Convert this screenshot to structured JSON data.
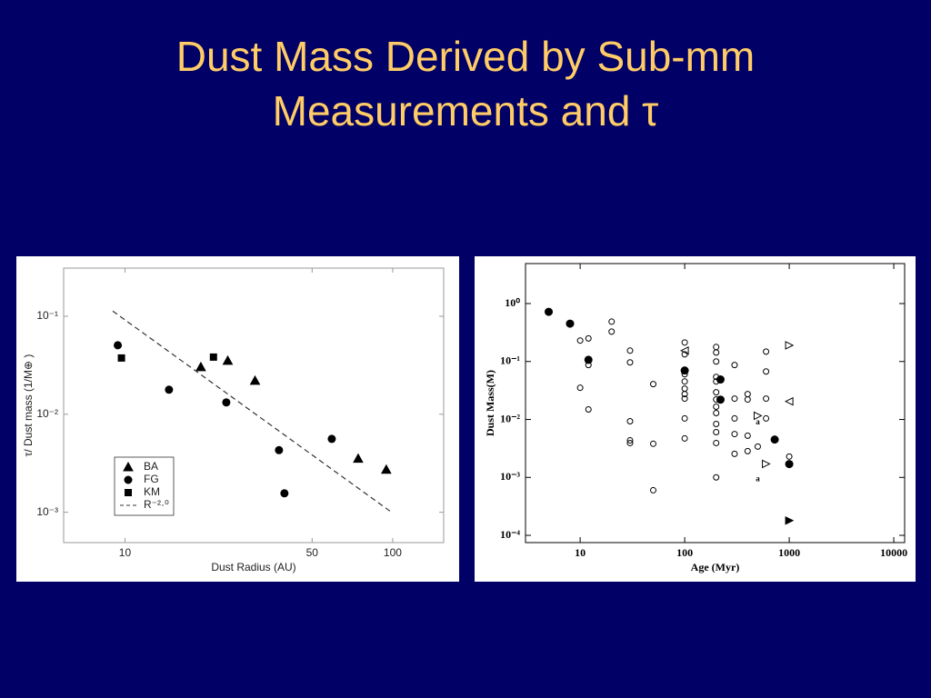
{
  "title": "Dust Mass Derived by Sub-mm Measurements and τ",
  "chart_data": [
    {
      "type": "scatter",
      "xlabel": "Dust Radius (AU)",
      "ylabel": "τ/ Dust mass (1/M⊕ )",
      "xscale": "log",
      "yscale": "log",
      "xlim": [
        5.9,
        155
      ],
      "ylim": [
        0.00049,
        0.31
      ],
      "xticks": [
        10,
        50,
        100
      ],
      "yticks": [
        {
          "value": 0.1,
          "label": "10⁻¹"
        },
        {
          "value": 0.01,
          "label": "10⁻²"
        },
        {
          "value": 0.001,
          "label": "10⁻³"
        }
      ],
      "grid": false,
      "legend": "lower left",
      "series": [
        {
          "name": "BA",
          "marker": "triangle-up-filled",
          "color": "#000000",
          "x": [
            19.2,
            24.2,
            30.6,
            74.3,
            94.6
          ],
          "values": [
            0.0303,
            0.0352,
            0.022,
            0.00352,
            0.00272
          ]
        },
        {
          "name": "FG",
          "marker": "circle-filled",
          "color": "#000000",
          "x": [
            9.4,
            14.6,
            23.9,
            37.6,
            39.4,
            59.2
          ],
          "values": [
            0.0506,
            0.0178,
            0.0132,
            0.0043,
            0.00156,
            0.0056
          ]
        },
        {
          "name": "KM",
          "marker": "square-filled",
          "color": "#000000",
          "x": [
            9.7,
            21.4
          ],
          "values": [
            0.0375,
            0.0383
          ]
        },
        {
          "name": "R⁻²·⁰",
          "line": "dashed",
          "color": "#333333",
          "x": [
            9,
            100
          ],
          "values": [
            0.113,
            0.00098
          ]
        }
      ]
    },
    {
      "type": "scatter",
      "xlabel": "Age (Myr)",
      "ylabel": "Dust Mass(M)",
      "xscale": "log",
      "yscale": "log",
      "xlim": [
        3,
        12700
      ],
      "ylim": [
        7.5e-05,
        4.9
      ],
      "xticks": [
        10,
        100,
        1000,
        10000
      ],
      "yticks": [
        {
          "value": 1,
          "label": "10⁰"
        },
        {
          "value": 0.1,
          "label": "10⁻¹"
        },
        {
          "value": 0.01,
          "label": "10⁻²"
        },
        {
          "value": 0.001,
          "label": "10⁻³"
        },
        {
          "value": 0.0001,
          "label": "10⁻⁴"
        }
      ],
      "grid": false,
      "series": [
        {
          "marker": "circle-filled",
          "color": "#000000",
          "x": [
            5,
            8,
            12,
            100,
            220,
            220,
            726,
            1000
          ],
          "values": [
            0.72,
            0.45,
            0.107,
            0.07,
            0.049,
            0.022,
            0.0045,
            0.0017
          ]
        },
        {
          "marker": "circle-open",
          "color": "#000000",
          "x": [
            10,
            12,
            12,
            10,
            12,
            20,
            20,
            30,
            30,
            30,
            30,
            30,
            50,
            50,
            50,
            100,
            100,
            100,
            100,
            100,
            100,
            100,
            100,
            100,
            200,
            200,
            200,
            200,
            200,
            200,
            200,
            200,
            200,
            200,
            200,
            200,
            200,
            300,
            300,
            300,
            300,
            300,
            400,
            400,
            400,
            400,
            500,
            600,
            600,
            600,
            600,
            1000
          ],
          "values": [
            0.23,
            0.25,
            0.087,
            0.0352,
            0.0149,
            0.487,
            0.328,
            0.154,
            0.0965,
            0.0093,
            0.00437,
            0.00392,
            0.0407,
            0.0038,
            0.0006,
            0.213,
            0.133,
            0.0604,
            0.0453,
            0.034,
            0.0274,
            0.0229,
            0.0104,
            0.0047,
            0.178,
            0.143,
            0.1,
            0.0542,
            0.0453,
            0.0294,
            0.0221,
            0.0166,
            0.0129,
            0.00835,
            0.00604,
            0.00392,
            0.001,
            0.087,
            0.0229,
            0.0104,
            0.0056,
            0.00255,
            0.0274,
            0.0221,
            0.00524,
            0.00284,
            0.0034,
            0.148,
            0.0673,
            0.0229,
            0.0104,
            0.00229
          ]
        },
        {
          "marker": "triangle-left-open",
          "color": "#000000",
          "x": [
            100,
            1000
          ],
          "values": [
            0.154,
            0.0205
          ]
        },
        {
          "marker": "triangle-right-open",
          "color": "#000000",
          "x": [
            1000,
            500,
            600
          ],
          "values": [
            0.19,
            0.0116,
            0.00171
          ]
        },
        {
          "marker": "triangle-right-filled",
          "color": "#000000",
          "x": [
            1000
          ],
          "values": [
            0.00018
          ]
        }
      ],
      "annotations": [
        {
          "text": "a",
          "x": 500,
          "y": 0.0089
        },
        {
          "text": "a",
          "x": 500,
          "y": 0.00092
        }
      ]
    }
  ]
}
